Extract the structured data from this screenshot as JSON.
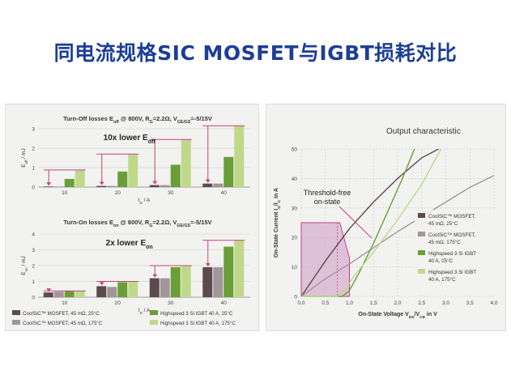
{
  "page": {
    "title": "同电流规格SIC MOSFET与IGBT损耗对比"
  },
  "colors": {
    "mosfet25": "#5b4a4e",
    "mosfet175": "#a2969a",
    "igbt25": "#6a9e36",
    "igbt175": "#bfd98a",
    "arrow": "#c2447f",
    "shade": "#d2a6cb",
    "grid": "#c8c8c8"
  },
  "chart_data": [
    {
      "type": "bar",
      "title_main": "Turn-Off losses E",
      "title_sub": "off",
      "title_tail": " @ 800V, R",
      "title_rg_sub": "G",
      "title_mid": "=2.2Ω, V",
      "title_v_sub": "GE/GS",
      "title_end": "=-5/15V",
      "annotation_main": "10x lower E",
      "annotation_sub": "off",
      "ylabel": "E_off / mJ",
      "xlabel": "I_D / A",
      "categories": [
        "10",
        "20",
        "30",
        "40"
      ],
      "ylim": [
        0,
        3
      ],
      "yticks": [
        "0",
        "1",
        "2",
        "3"
      ],
      "series": [
        {
          "name": "CoolSiC™ MOSFET, 45 mΩ, 25°C",
          "values": [
            0.03,
            0.06,
            0.1,
            0.18
          ]
        },
        {
          "name": "CoolSiC™ MOSFET, 45 mΩ, 175°C",
          "values": [
            0.03,
            0.06,
            0.1,
            0.18
          ]
        },
        {
          "name": "Highspeed 3 Si IGBT 40 A, 25°C",
          "values": [
            0.42,
            0.8,
            1.15,
            1.55
          ]
        },
        {
          "name": "Highspeed 3 Si IGBT 40 A, 175°C",
          "values": [
            0.88,
            1.7,
            2.45,
            3.15
          ]
        }
      ]
    },
    {
      "type": "bar",
      "title_main": "Turn-On losses E",
      "title_sub": "on",
      "title_tail": " @ 800V, R",
      "title_rg_sub": "G",
      "title_mid": "=2.2Ω, V",
      "title_v_sub": "GE/GS",
      "title_end": "=-5/15V",
      "annotation_main": "2x lower E",
      "annotation_sub": "on",
      "ylabel": "E_on / mJ",
      "xlabel": "I_D / A",
      "categories": [
        "10",
        "20",
        "30",
        "40"
      ],
      "ylim": [
        0,
        4
      ],
      "yticks": [
        "0",
        "1",
        "2",
        "3",
        "4"
      ],
      "series": [
        {
          "name": "CoolSiC™ MOSFET, 45 mΩ, 25°C",
          "values": [
            0.3,
            0.7,
            1.2,
            1.9
          ]
        },
        {
          "name": "CoolSiC™ MOSFET, 45 mΩ, 175°C",
          "values": [
            0.35,
            0.65,
            1.2,
            1.9
          ]
        },
        {
          "name": "Highspeed 3 Si IGBT 40 A, 25°C",
          "values": [
            0.38,
            0.95,
            1.9,
            3.2
          ]
        },
        {
          "name": "Highspeed 3 Si IGBT 40 A, 175°C",
          "values": [
            0.4,
            1.0,
            2.0,
            3.6
          ]
        }
      ]
    },
    {
      "type": "line",
      "title": "Output characteristic",
      "xlabel_main": "On-State Voltage V",
      "xlabel_sub": "DS",
      "xlabel_mid": "/V",
      "xlabel_sub2": "CE",
      "xlabel_end": " in V",
      "ylabel": "On-State Current I_D/I_C in A",
      "xlim": [
        0,
        4
      ],
      "ylim": [
        0,
        50
      ],
      "xticks": [
        "0,0",
        "0,5",
        "1,0",
        "1,5",
        "2,0",
        "2,5",
        "3,0",
        "3,5",
        "4,0"
      ],
      "yticks": [
        "0",
        "10",
        "20",
        "30",
        "40",
        "50"
      ],
      "annotation": [
        "Threshold-free",
        "on-state"
      ],
      "shade_region": [
        [
          0,
          0
        ],
        [
          0,
          25
        ],
        [
          0.8,
          25
        ],
        [
          1.0,
          13
        ],
        [
          1.0,
          0
        ]
      ],
      "series": [
        {
          "name_lines": [
            "CoolSiC™ MOSFET,",
            "45 mΩ, 25°C"
          ],
          "x": [
            0,
            0.5,
            1.0,
            1.5,
            2.0,
            2.5,
            2.85
          ],
          "y": [
            0,
            12,
            23,
            32,
            40,
            47,
            50
          ]
        },
        {
          "name_lines": [
            "CoolSiC™ MOSFET,",
            "45 mΩ, 175°C"
          ],
          "x": [
            0,
            0.5,
            1.0,
            1.5,
            2.0,
            2.5,
            3.0,
            3.5,
            4.0
          ],
          "y": [
            0,
            6,
            11,
            16.5,
            22,
            27,
            32,
            37,
            41
          ]
        },
        {
          "name_lines": [
            "Highspeed 3 Si IGBT",
            "40 A, 25°C"
          ],
          "x": [
            0,
            0.85,
            1.0,
            1.2,
            1.5,
            1.8,
            2.1,
            2.35
          ],
          "y": [
            0,
            0,
            2,
            8,
            18,
            29,
            40,
            50
          ]
        },
        {
          "name_lines": [
            "Highspeed 3 Si IGBT",
            "40 A, 175°C"
          ],
          "x": [
            0,
            0.75,
            0.9,
            1.1,
            1.5,
            2.0,
            2.5,
            2.9
          ],
          "y": [
            0,
            0,
            2,
            7,
            15,
            26,
            38,
            50
          ]
        }
      ]
    }
  ],
  "legend_left": [
    "CoolSiC™ MOSFET, 45 mΩ, 25°C",
    "CoolSiC™ MOSFET, 45 mΩ, 175°C",
    "Highspeed 3 Si IGBT 40 A, 25°C",
    "Highspeed 3 Si IGBT 40 A, 175°C"
  ]
}
